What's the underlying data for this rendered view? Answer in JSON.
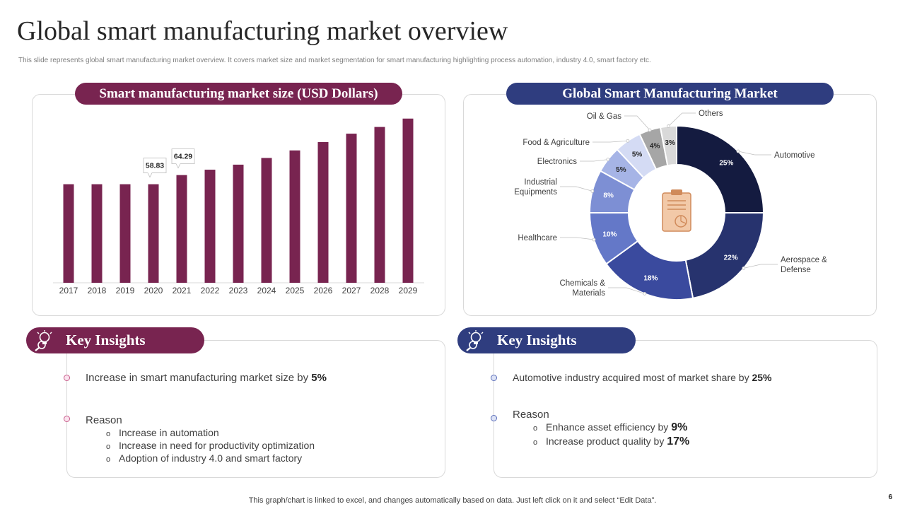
{
  "page": {
    "title": "Global smart manufacturing market overview",
    "subtitle": "This slide represents global smart manufacturing market overview. It covers market size and market segmentation for smart manufacturing highlighting  process automation, industry 4.0, smart factory etc.",
    "footer": "This graph/chart is linked to excel,  and changes automatically based on data. Just left click on it and select “Edit Data”.",
    "page_number": "6"
  },
  "colors": {
    "maroon": "#782450",
    "navy": "#2f3d7f"
  },
  "left_panel": {
    "header": "Smart manufacturing market size (USD Dollars)"
  },
  "right_panel": {
    "header": "Global Smart Manufacturing Market",
    "center_icon": "clipboard-pie-icon"
  },
  "chart_data": [
    {
      "type": "bar",
      "title": "Smart manufacturing market size (USD Dollars)",
      "categories": [
        "2017",
        "2018",
        "2019",
        "2020",
        "2021",
        "2022",
        "2023",
        "2024",
        "2025",
        "2026",
        "2027",
        "2028",
        "2029"
      ],
      "values": [
        58.83,
        58.83,
        58.83,
        58.83,
        64.29,
        67.5,
        70.5,
        74.5,
        79,
        84,
        89,
        93,
        98
      ],
      "ylim": [
        0,
        100
      ],
      "grid": false,
      "data_labels": [
        {
          "category": "2020",
          "text": "58.83"
        },
        {
          "category": "2021",
          "text": "64.29"
        }
      ],
      "color": "#782450"
    },
    {
      "type": "pie",
      "title": "Global Smart Manufacturing Market",
      "donut": true,
      "slices": [
        {
          "label": "Automotive",
          "value": 25,
          "text": "25%",
          "color": "#141b40"
        },
        {
          "label": "Aerospace & Defense",
          "value": 22,
          "text": "22%",
          "color": "#27336e"
        },
        {
          "label": "Chemicals & Materials",
          "value": 18,
          "text": "18%",
          "color": "#3a4a9e"
        },
        {
          "label": "Healthcare",
          "value": 10,
          "text": "10%",
          "color": "#6478c8"
        },
        {
          "label": "Industrial Equipments",
          "value": 8,
          "text": "8%",
          "color": "#7d8fd4"
        },
        {
          "label": "Electronics",
          "value": 5,
          "text": "5%",
          "color": "#a6b4e6"
        },
        {
          "label": "Food & Agriculture",
          "value": 5,
          "text": "5%",
          "color": "#d4dbf4"
        },
        {
          "label": "Oil & Gas",
          "value": 4,
          "text": "4%",
          "color": "#a6a6a6"
        },
        {
          "label": "Others",
          "value": 3,
          "text": "3%",
          "color": "#d9d9d9"
        }
      ]
    }
  ],
  "insights_left": {
    "header": "Key Insights",
    "icon": "lightbulb-magnifier-icon",
    "point1_text": "Increase  in smart manufacturing  market size by ",
    "point1_value": "5%",
    "reason_label": "Reason",
    "reasons": [
      "Increase in automation",
      "Increase in need for productivity optimization",
      "Adoption of industry 4.0 and smart factory"
    ]
  },
  "insights_right": {
    "header": "Key Insights",
    "icon": "lightbulb-magnifier-icon",
    "point1_text": "Automotive industry acquired most of market share by ",
    "point1_value": "25%",
    "reason_label": "Reason",
    "reasons": [
      {
        "text": "Enhance asset efficiency by ",
        "value": "9%"
      },
      {
        "text": "Increase product quality by ",
        "value": "17%"
      }
    ]
  }
}
